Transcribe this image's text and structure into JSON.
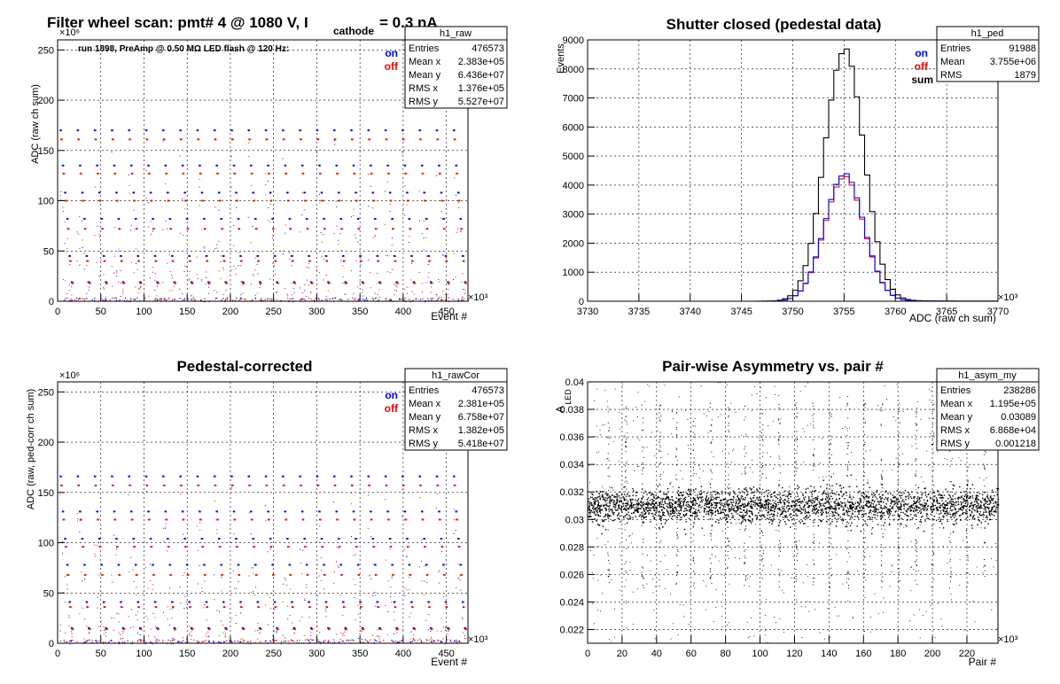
{
  "chart_data": [
    {
      "type": "scatter",
      "title": "Filter wheel scan: pmt#   4 @  1080 V, I",
      "title_sub": "cathode",
      "title_tail": "= 0.3 nA",
      "subtitle": "run 1898, PreAmp @ 0.50 MΩ  LED flash @  120 Hz:",
      "xlabel": "Event #",
      "ylabel": "ADC (raw ch sum)",
      "x_multiplier": "×10³",
      "y_multiplier": "×10⁶",
      "xlim": [
        0,
        475
      ],
      "ylim": [
        0,
        260
      ],
      "xticks": [
        "0",
        "50",
        "100",
        "150",
        "200",
        "250",
        "300",
        "350",
        "400",
        "450"
      ],
      "yticks": [
        "0",
        "50",
        "100",
        "150",
        "200",
        "250"
      ],
      "legend": [
        "on",
        "off"
      ],
      "colors": {
        "on": "#0000ff",
        "off": "#ff0000"
      },
      "band_levels_on": [
        170,
        135,
        108,
        82,
        45,
        19
      ],
      "band_levels_off": [
        161,
        127,
        100,
        72,
        40,
        18
      ],
      "stats": {
        "name": "h1_raw",
        "rows": [
          [
            "Entries",
            "476573"
          ],
          [
            "Mean x",
            "2.383e+05"
          ],
          [
            "Mean y",
            "6.436e+07"
          ],
          [
            "RMS x",
            "1.376e+05"
          ],
          [
            "RMS y",
            "5.527e+07"
          ]
        ]
      }
    },
    {
      "type": "bar",
      "title": "Shutter closed (pedestal data)",
      "xlabel": "ADC (raw ch sum)",
      "ylabel": "Events",
      "x_multiplier": "×10³",
      "xlim": [
        3730,
        3770
      ],
      "ylim": [
        0,
        9000
      ],
      "xticks": [
        "3730",
        "3735",
        "3740",
        "3745",
        "3750",
        "3755",
        "3760",
        "3765",
        "3770"
      ],
      "yticks": [
        "0",
        "1000",
        "2000",
        "3000",
        "4000",
        "5000",
        "6000",
        "7000",
        "8000",
        "9000"
      ],
      "legend": [
        "on",
        "off",
        "sum"
      ],
      "colors": {
        "on": "#0000ff",
        "off": "#ff0000",
        "sum": "#000000"
      },
      "sum_peak": 8600,
      "on_peak": 4350,
      "off_peak": 4250,
      "center": 3755,
      "sigma": 1.9,
      "stats": {
        "name": "h1_ped",
        "rows": [
          [
            "Entries",
            "91988"
          ],
          [
            "Mean",
            "3.755e+06"
          ],
          [
            "RMS",
            "1879"
          ]
        ]
      }
    },
    {
      "type": "scatter",
      "title": "Pedestal-corrected",
      "xlabel": "Event #",
      "ylabel": "ADC (raw, ped-corr ch sum)",
      "x_multiplier": "×10³",
      "y_multiplier": "×10⁶",
      "xlim": [
        0,
        475
      ],
      "ylim": [
        0,
        260
      ],
      "xticks": [
        "0",
        "50",
        "100",
        "150",
        "200",
        "250",
        "300",
        "350",
        "400",
        "450"
      ],
      "yticks": [
        "0",
        "50",
        "100",
        "150",
        "200",
        "250"
      ],
      "legend": [
        "on",
        "off"
      ],
      "colors": {
        "on": "#0000ff",
        "off": "#ff0000"
      },
      "band_levels_on": [
        166,
        131,
        104,
        78,
        41,
        15
      ],
      "band_levels_off": [
        157,
        123,
        96,
        68,
        36,
        14
      ],
      "stats": {
        "name": "h1_rawCor",
        "rows": [
          [
            "Entries",
            "476573"
          ],
          [
            "Mean x",
            "2.381e+05"
          ],
          [
            "Mean y",
            "6.758e+07"
          ],
          [
            "RMS x",
            "1.382e+05"
          ],
          [
            "RMS y",
            "5.418e+07"
          ]
        ]
      }
    },
    {
      "type": "scatter",
      "title": "Pair-wise Asymmetry vs. pair #",
      "xlabel": "Pair #",
      "ylabel": "A",
      "ylabel_sub": "LED",
      "x_multiplier": "×10³",
      "xlim": [
        0,
        238
      ],
      "ylim": [
        0.021,
        0.04
      ],
      "xticks": [
        "0",
        "20",
        "40",
        "60",
        "80",
        "100",
        "120",
        "140",
        "160",
        "180",
        "200",
        "220"
      ],
      "yticks": [
        "0.022",
        "0.024",
        "0.026",
        "0.028",
        "0.03",
        "0.032",
        "0.034",
        "0.036",
        "0.038",
        "0.04"
      ],
      "band_center": 0.031,
      "stats": {
        "name": "h1_asym_my",
        "rows": [
          [
            "Entries",
            "238286"
          ],
          [
            "Mean x",
            "1.195e+05"
          ],
          [
            "Mean y",
            "0.03089"
          ],
          [
            "RMS x",
            "6.868e+04"
          ],
          [
            "RMS y",
            "0.001218"
          ]
        ]
      }
    }
  ]
}
